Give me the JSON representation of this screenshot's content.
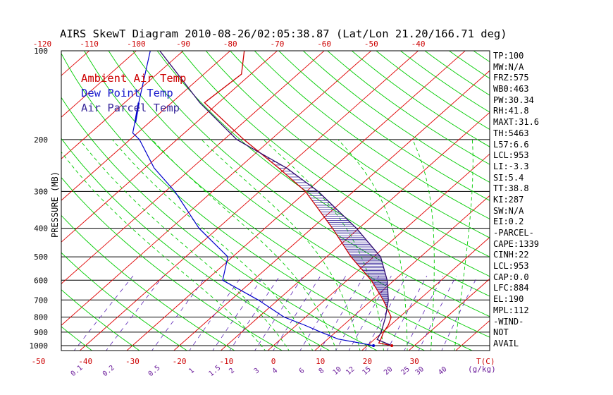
{
  "chart_data": {
    "type": "line",
    "title": "AIRS SkewT Diagram 2010-08-26/02:05:38.87 (Lat/Lon 21.20/166.71 deg)",
    "ylabel": "PRESSURE (MB)",
    "xlabel": "T(C)",
    "mixing_ratio_unit": "(g/kg)",
    "pressure_ticks": [
      100,
      200,
      300,
      400,
      500,
      600,
      700,
      800,
      900,
      1000
    ],
    "top_temp_ticks": [
      -120,
      -110,
      -100,
      -90,
      -80,
      -70,
      -60,
      -50,
      -40
    ],
    "bottom_temp_ticks": [
      -50,
      -40,
      -30,
      -20,
      -10,
      0,
      10,
      20,
      30
    ],
    "mixing_ratio_ticks": [
      "0.1",
      "0.2",
      "0.5",
      "1",
      "1.5",
      "2",
      "3",
      "4",
      "6",
      "8",
      "10",
      "12",
      "15",
      "20",
      "25",
      "30",
      "40"
    ],
    "legend": [
      "Ambient Air Temp",
      "Dew Point Temp",
      "Air Parcel Temp"
    ],
    "colors": {
      "ambient": "#cc0000",
      "dewpoint": "#0000cc",
      "parcel": "#2e0a6e",
      "isotherm": "#e00000",
      "dry_adiabat": "#00cc00",
      "moist_adiabat": "#00cc00",
      "mixing_ratio": "#5a22b5",
      "text_red": "#cc0000",
      "text_purple": "#6a1b9a"
    },
    "series": [
      {
        "name": "Ambient Air Temp",
        "points": [
          [
            1000,
            25.2
          ],
          [
            980,
            21.8
          ],
          [
            950,
            21.3
          ],
          [
            900,
            20.2
          ],
          [
            850,
            19.5
          ],
          [
            800,
            18.2
          ],
          [
            700,
            12.4
          ],
          [
            600,
            5.1
          ],
          [
            500,
            -4.8
          ],
          [
            400,
            -15.6
          ],
          [
            300,
            -30.2
          ],
          [
            250,
            -41.5
          ],
          [
            200,
            -55.8
          ],
          [
            150,
            -73
          ],
          [
            120,
            -72
          ],
          [
            100,
            -77
          ]
        ]
      },
      {
        "name": "Dew Point Temp",
        "points": [
          [
            1000,
            21.3
          ],
          [
            980,
            17.8
          ],
          [
            950,
            12.2
          ],
          [
            900,
            6.9
          ],
          [
            850,
            1.5
          ],
          [
            800,
            -4.6
          ],
          [
            700,
            -14.2
          ],
          [
            600,
            -26.5
          ],
          [
            500,
            -31
          ],
          [
            400,
            -44
          ],
          [
            300,
            -58
          ],
          [
            250,
            -68
          ],
          [
            200,
            -78
          ],
          [
            190,
            -81
          ],
          [
            150,
            -87
          ],
          [
            100,
            -97
          ]
        ]
      },
      {
        "name": "Air Parcel Temp",
        "points": [
          [
            1000,
            25.2
          ],
          [
            953,
            20.6
          ],
          [
            900,
            19.7
          ],
          [
            800,
            17
          ],
          [
            700,
            13.5
          ],
          [
            600,
            8.5
          ],
          [
            500,
            1.5
          ],
          [
            400,
            -10.5
          ],
          [
            300,
            -27.5
          ],
          [
            250,
            -39.8
          ],
          [
            200,
            -57.3
          ],
          [
            150,
            -74
          ],
          [
            100,
            -95
          ]
        ]
      }
    ]
  },
  "stats": [
    "TP:100",
    "MW:N/A",
    "FRZ:575",
    "WB0:463",
    "PW:30.34",
    "RH:41.8",
    "MAXT:31.6",
    "TH:5463",
    "L57:6.6",
    "LCL:953",
    "LI:-3.3",
    "SI:5.4",
    "TT:38.8",
    "KI:287",
    "SW:N/A",
    "EI:0.2",
    "-PARCEL-",
    "CAPE:1339",
    "CINH:22",
    "LCL:953",
    "CAP:0.0",
    "LFC:884",
    "EL:190",
    "MPL:112",
    "-WIND-",
    "NOT",
    "AVAIL"
  ]
}
